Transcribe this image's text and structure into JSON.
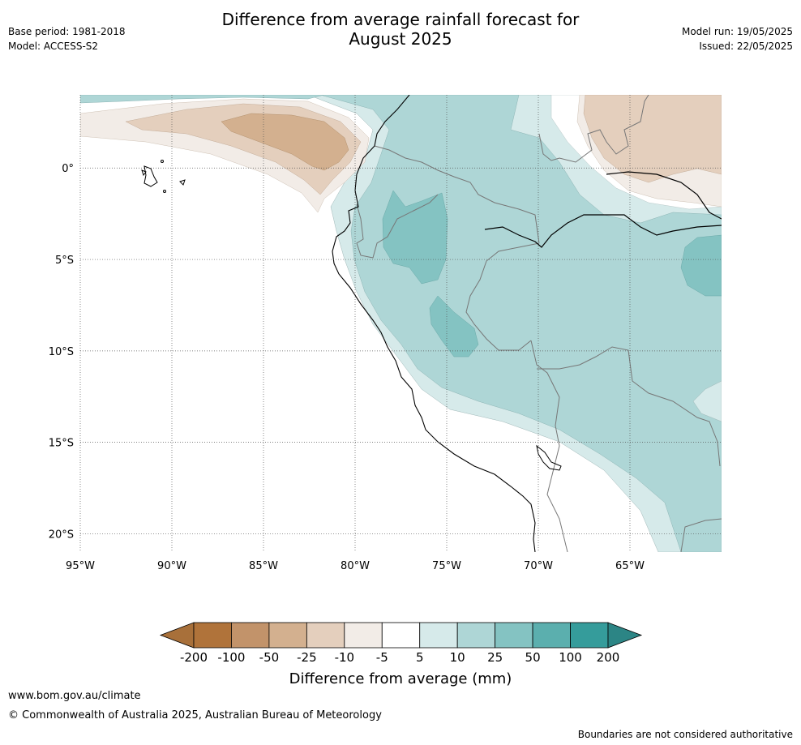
{
  "header": {
    "title_line1": "Difference from average rainfall forecast for",
    "title_line2": "August 2025",
    "base_period": "Base period: 1981-2018",
    "model": "Model: ACCESS-S2",
    "model_run": "Model run: 19/05/2025",
    "issued": "Issued: 22/05/2025"
  },
  "map": {
    "latitude_labels": [
      "0°",
      "5°S",
      "10°S",
      "15°S",
      "20°S"
    ],
    "longitude_labels": [
      "95°W",
      "90°W",
      "85°W",
      "80°W",
      "75°W",
      "70°W",
      "65°W"
    ],
    "latitude_values": [
      0,
      -5,
      -10,
      -15,
      -20
    ],
    "longitude_values": [
      -95,
      -90,
      -85,
      -80,
      -75,
      -70,
      -65
    ],
    "lon_range": [
      -95,
      -60
    ],
    "lat_range": [
      -21,
      4
    ],
    "gridlines": "dotted"
  },
  "colorbar": {
    "title": "Difference from average (mm)",
    "tick_labels": [
      "-200",
      "-100",
      "-50",
      "-25",
      "-10",
      "-5",
      "5",
      "10",
      "25",
      "50",
      "100",
      "200"
    ],
    "colors": [
      "#a8703a",
      "#b0733a",
      "#c2936a",
      "#d3b08f",
      "#e4cfbd",
      "#f2ece7",
      "#ffffff",
      "#d6eaea",
      "#aed6d6",
      "#84c3c2",
      "#5bafae",
      "#359c9b",
      "#2c8585"
    ]
  },
  "footer": {
    "website": "www.bom.gov.au/climate",
    "copyright": "© Commonwealth of Australia 2025, Australian Bureau of Meteorology",
    "disclaimer": "Boundaries are not considered authoritative"
  }
}
